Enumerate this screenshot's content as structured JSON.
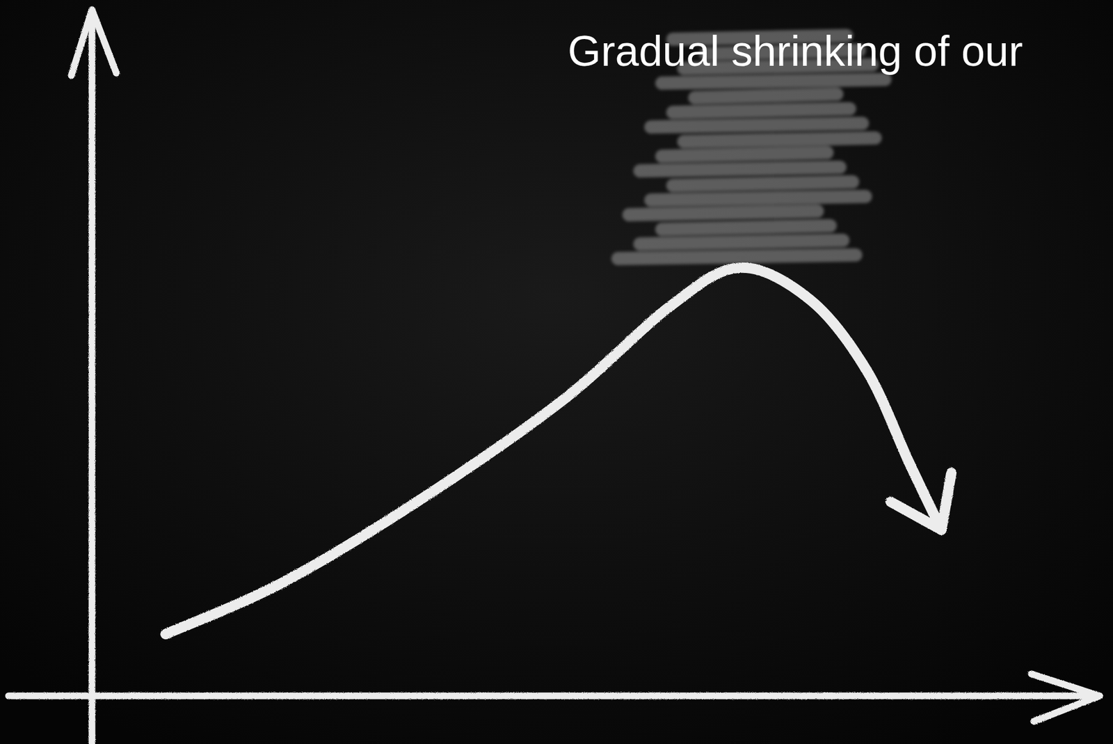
{
  "chart_data": {
    "type": "line",
    "subtitle": "Gradual shrinking of our",
    "x": [
      7.3,
      18.9,
      32.9,
      46.9,
      57.3,
      64.3,
      71.3,
      76.9,
      81.1,
      84.3
    ],
    "values": [
      9.0,
      16.5,
      28.9,
      43.3,
      56.7,
      62.4,
      57.7,
      47.4,
      34.0,
      24.2
    ],
    "xlim": [
      0,
      100
    ],
    "ylim": [
      0,
      100
    ],
    "tick_labels": false,
    "grid": false,
    "color": "#ececec"
  }
}
